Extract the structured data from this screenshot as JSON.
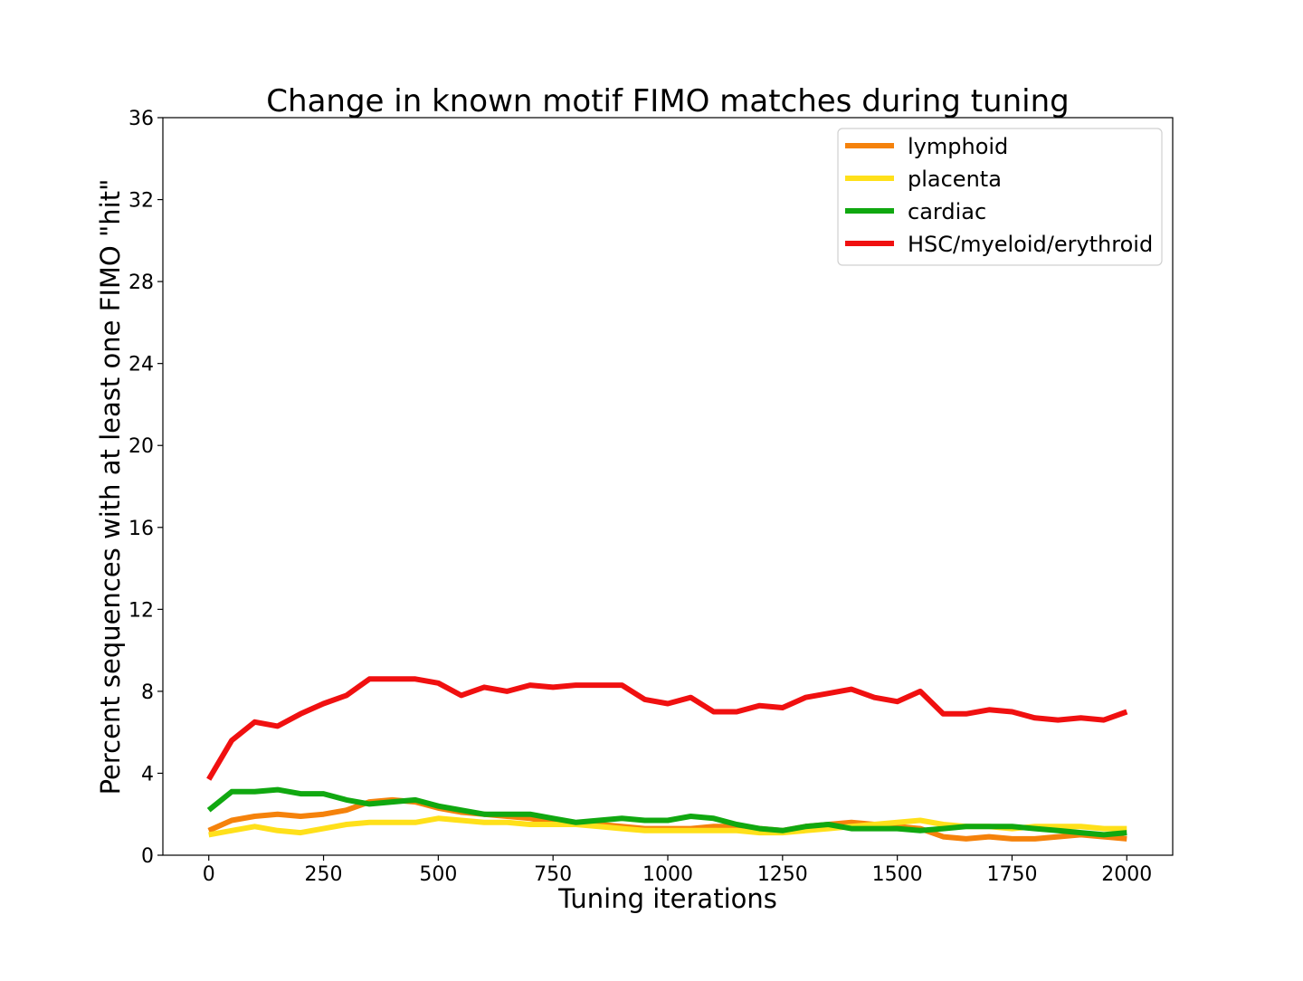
{
  "chart_data": {
    "type": "line",
    "title": "Change in known motif FIMO matches during tuning",
    "xlabel": "Tuning iterations",
    "ylabel": "Percent sequences with at least one FIMO \"hit\"",
    "xlim": [
      -100,
      2100
    ],
    "ylim": [
      0,
      36
    ],
    "xticks": [
      "0",
      "250",
      "500",
      "750",
      "1000",
      "1250",
      "1500",
      "1750",
      "2000"
    ],
    "yticks": [
      "0",
      "4",
      "8",
      "12",
      "16",
      "20",
      "24",
      "28",
      "32",
      "36"
    ],
    "xtick_values": [
      0,
      250,
      500,
      750,
      1000,
      1250,
      1500,
      1750,
      2000
    ],
    "ytick_values": [
      0,
      4,
      8,
      12,
      16,
      20,
      24,
      28,
      32,
      36
    ],
    "grid": false,
    "legend_position": "top-right",
    "x": [
      0,
      50,
      100,
      150,
      200,
      250,
      300,
      350,
      400,
      450,
      500,
      550,
      600,
      650,
      700,
      750,
      800,
      850,
      900,
      950,
      1000,
      1050,
      1100,
      1150,
      1200,
      1250,
      1300,
      1350,
      1400,
      1450,
      1500,
      1550,
      1600,
      1650,
      1700,
      1750,
      1800,
      1850,
      1900,
      1950,
      2000
    ],
    "series": [
      {
        "name": "lymphoid",
        "color": "#f5820b",
        "values": [
          1.2,
          1.7,
          1.9,
          2.0,
          1.9,
          2.0,
          2.2,
          2.6,
          2.7,
          2.6,
          2.3,
          2.1,
          2.0,
          1.9,
          1.8,
          1.6,
          1.5,
          1.5,
          1.4,
          1.3,
          1.3,
          1.3,
          1.4,
          1.4,
          1.3,
          1.2,
          1.4,
          1.5,
          1.6,
          1.5,
          1.4,
          1.3,
          0.9,
          0.8,
          0.9,
          0.8,
          0.8,
          0.9,
          1.0,
          0.9,
          0.8
        ]
      },
      {
        "name": "placenta",
        "color": "#ffe01a",
        "values": [
          1.0,
          1.2,
          1.4,
          1.2,
          1.1,
          1.3,
          1.5,
          1.6,
          1.6,
          1.6,
          1.8,
          1.7,
          1.6,
          1.6,
          1.5,
          1.5,
          1.5,
          1.4,
          1.3,
          1.2,
          1.2,
          1.2,
          1.2,
          1.2,
          1.1,
          1.1,
          1.2,
          1.3,
          1.4,
          1.5,
          1.6,
          1.7,
          1.5,
          1.4,
          1.4,
          1.3,
          1.4,
          1.4,
          1.4,
          1.3,
          1.3
        ]
      },
      {
        "name": "cardiac",
        "color": "#10a810",
        "values": [
          2.2,
          3.1,
          3.1,
          3.2,
          3.0,
          3.0,
          2.7,
          2.5,
          2.6,
          2.7,
          2.4,
          2.2,
          2.0,
          2.0,
          2.0,
          1.8,
          1.6,
          1.7,
          1.8,
          1.7,
          1.7,
          1.9,
          1.8,
          1.5,
          1.3,
          1.2,
          1.4,
          1.5,
          1.3,
          1.3,
          1.3,
          1.2,
          1.3,
          1.4,
          1.4,
          1.4,
          1.3,
          1.2,
          1.1,
          1.0,
          1.1
        ]
      },
      {
        "name": "HSC/myeloid/erythroid",
        "color": "#f01010",
        "values": [
          3.7,
          5.6,
          6.5,
          6.3,
          6.9,
          7.4,
          7.8,
          8.6,
          8.6,
          8.6,
          8.4,
          7.8,
          8.2,
          8.0,
          8.3,
          8.2,
          8.3,
          8.3,
          8.3,
          7.6,
          7.4,
          7.7,
          7.0,
          7.0,
          7.3,
          7.2,
          7.7,
          7.9,
          8.1,
          7.7,
          7.5,
          8.0,
          6.9,
          6.9,
          7.1,
          7.0,
          6.7,
          6.6,
          6.7,
          6.6,
          7.0
        ]
      }
    ]
  }
}
